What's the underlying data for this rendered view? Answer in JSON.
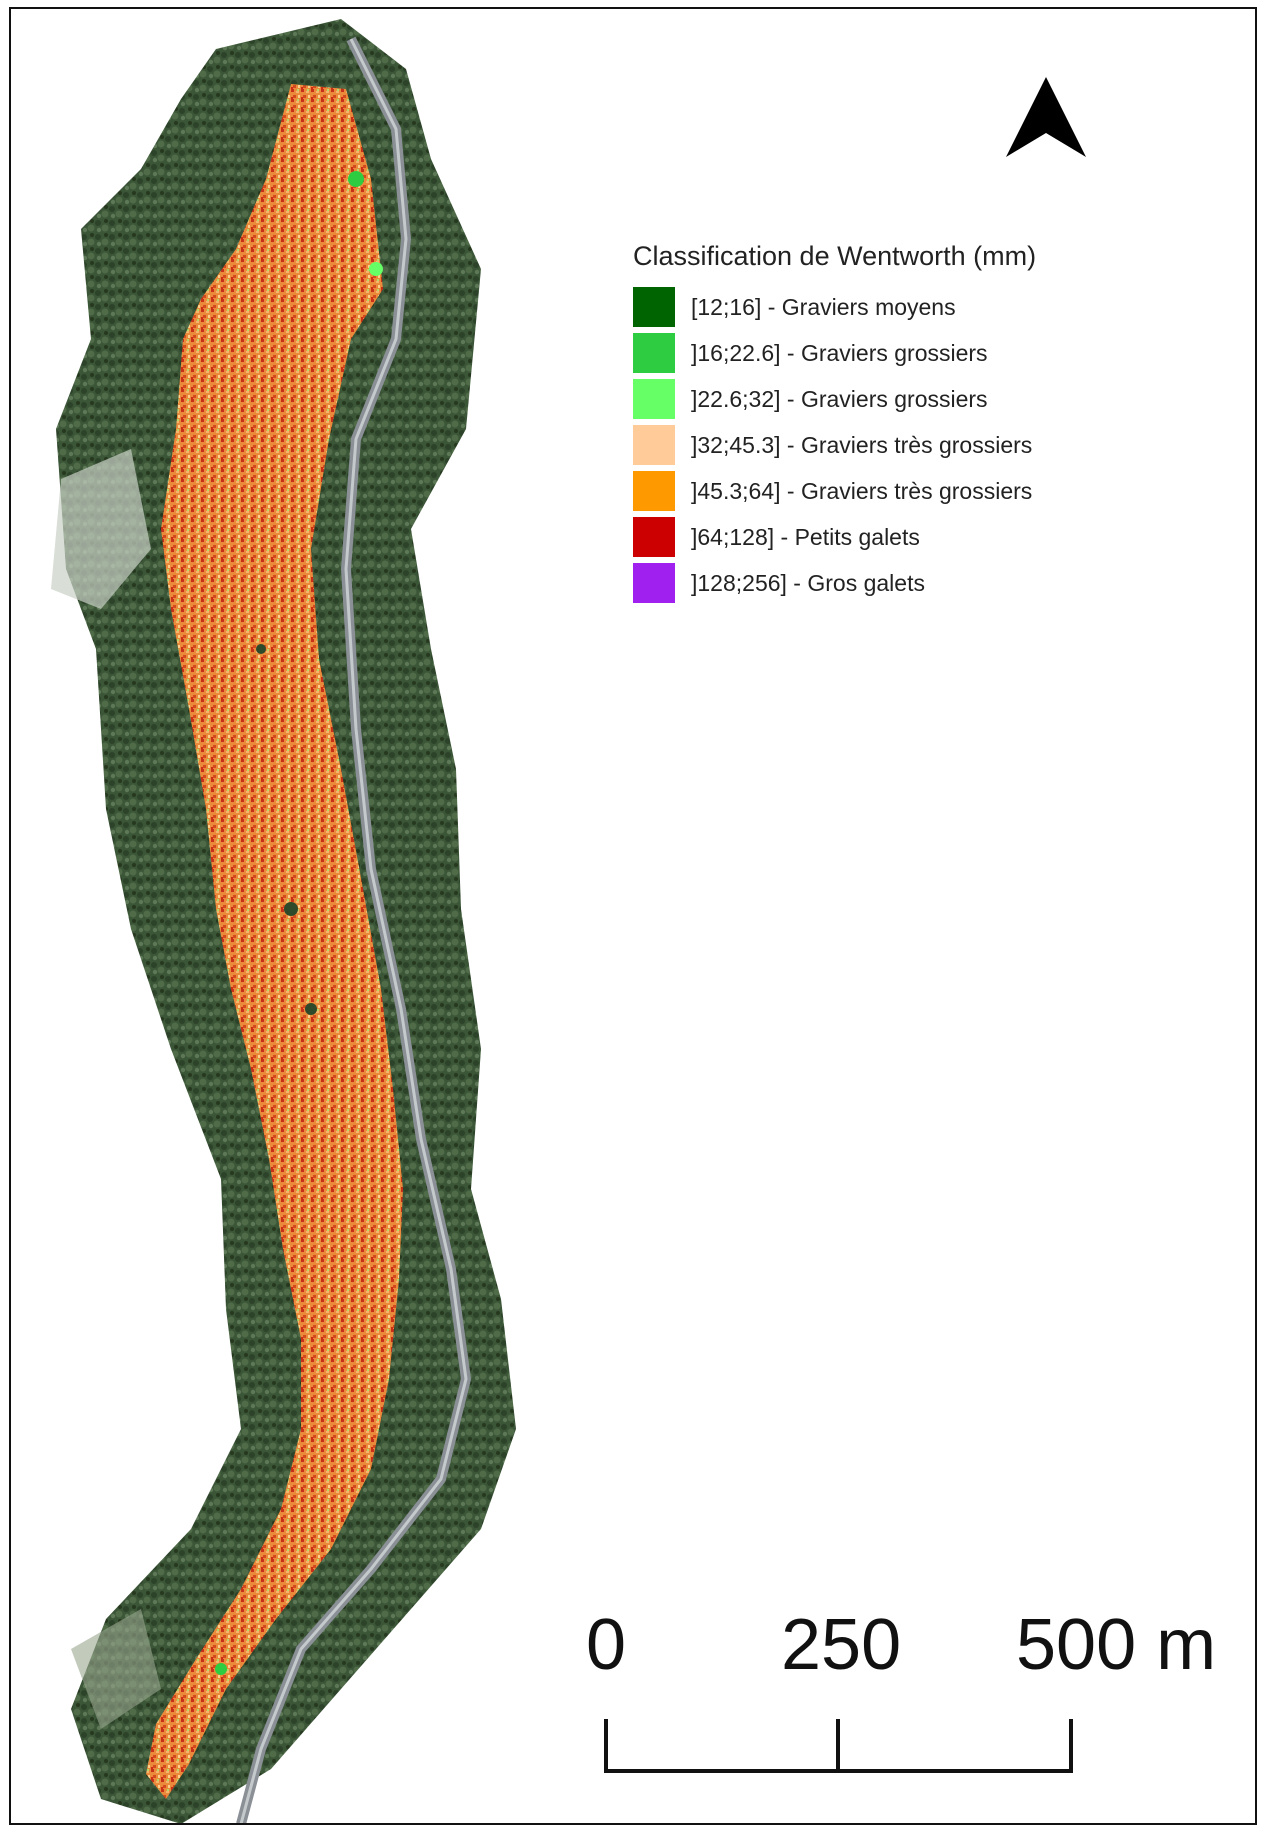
{
  "map": {
    "legend": {
      "title": "Classification de Wentworth (mm)",
      "items": [
        {
          "label": "[12;16] - Graviers moyens",
          "color": "#006400"
        },
        {
          "label": "]16;22.6] - Graviers grossiers",
          "color": "#2ecc40"
        },
        {
          "label": "]22.6;32] - Graviers grossiers",
          "color": "#66ff66"
        },
        {
          "label": "]32;45.3] - Graviers très grossiers",
          "color": "#ffcc99"
        },
        {
          "label": "]45.3;64] - Graviers très grossiers",
          "color": "#ff9900"
        },
        {
          "label": "]64;128] - Petits galets",
          "color": "#cc0000"
        },
        {
          "label": "]128;256] - Gros galets",
          "color": "#a020f0"
        }
      ]
    },
    "scale": {
      "labels": [
        "0",
        "250",
        "500 m"
      ]
    },
    "north_arrow_icon": "north-arrow-icon",
    "colors": {
      "vegetation": "#3d5a3a",
      "river_bed": "#e8893a",
      "road": "#8a9096"
    }
  }
}
